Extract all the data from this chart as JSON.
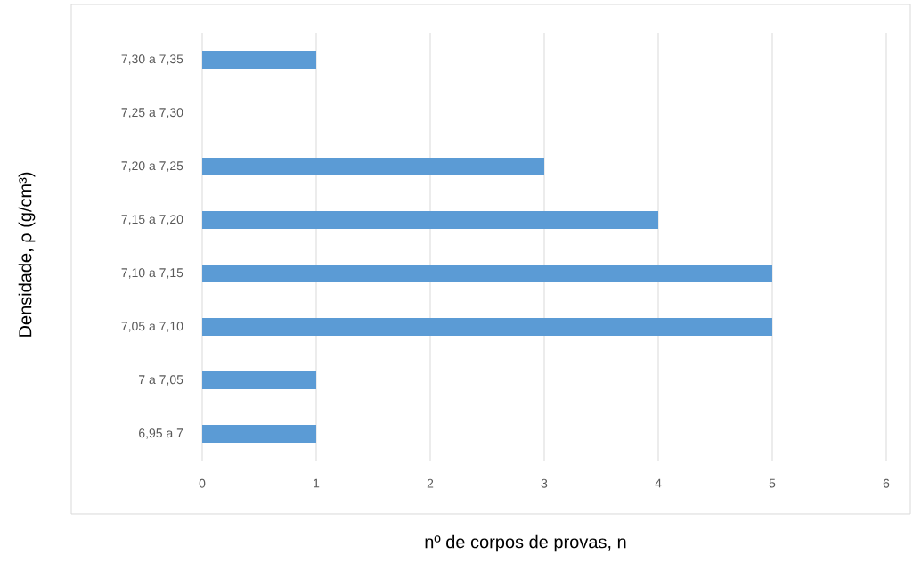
{
  "chart_data": {
    "type": "bar",
    "orientation": "horizontal",
    "categories": [
      "7,30 a 7,35",
      "7,25 a 7,30",
      "7,20 a 7,25",
      "7,15 a 7,20",
      "7,10 a 7,15",
      "7,05 a 7,10",
      "7 a 7,05",
      "6,95 a 7"
    ],
    "values": [
      1,
      0,
      3,
      4,
      5,
      5,
      1,
      1
    ],
    "color": "#5b9bd5",
    "xlim": [
      0,
      6
    ],
    "xticks": [
      0,
      1,
      2,
      3,
      4,
      5,
      6
    ],
    "grid": "x",
    "xlabel": "nº de corpos de provas, n",
    "ylabel": "Densidade, ρ (g/cm³)"
  }
}
